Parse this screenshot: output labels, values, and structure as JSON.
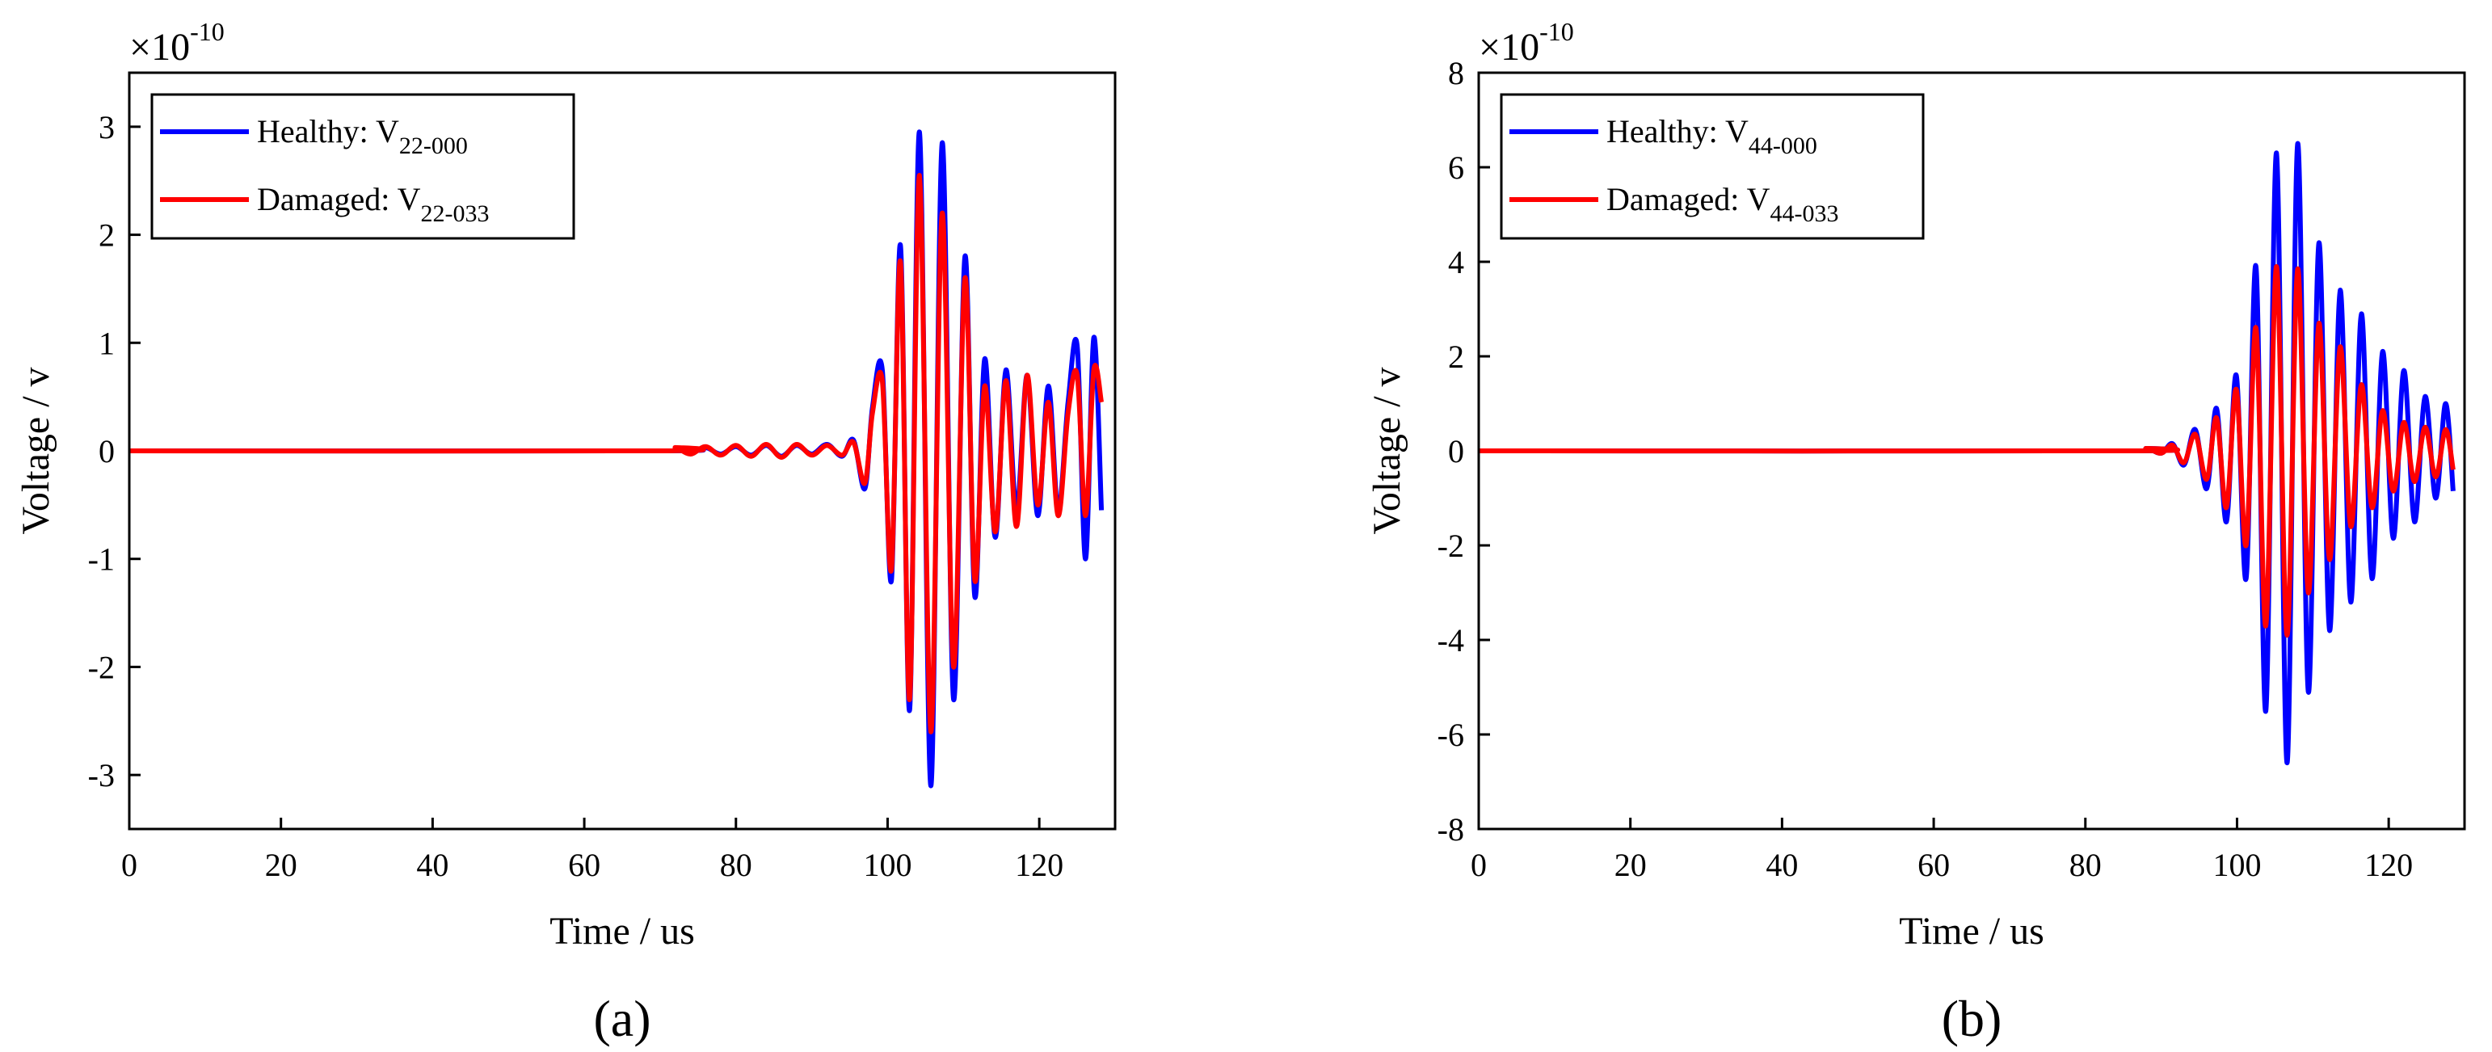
{
  "figure": {
    "panel_labels": [
      "(a)",
      "(b)"
    ],
    "colors": {
      "healthy": "#0000ff",
      "damaged": "#ff0000",
      "axis": "#000000"
    }
  },
  "chart_data": [
    {
      "type": "line",
      "panel_label": "a",
      "xlabel": "Time / us",
      "ylabel": "Voltage / v",
      "multiplier": "×10",
      "multiplier_exponent": "-10",
      "xlim": [
        0,
        130
      ],
      "ylim": [
        -3.5,
        3.5
      ],
      "xticks": [
        0,
        20,
        40,
        60,
        80,
        100,
        120
      ],
      "yticks": [
        -3,
        -2,
        -1,
        0,
        1,
        2,
        3
      ],
      "legend": [
        {
          "label": "Healthy: V",
          "subscript": "22-000"
        },
        {
          "label": "Damaged: V",
          "subscript": "22-033"
        }
      ],
      "legend_position": "top-left",
      "series": [
        {
          "name": "Healthy: V22-000",
          "color": "#0000ff",
          "x": [
            0,
            70,
            72,
            74,
            76,
            78,
            80,
            82,
            84,
            86,
            88,
            90,
            92,
            94,
            95.5,
            97,
            98,
            99.3,
            100.5,
            101.7,
            102.9,
            104.2,
            105.7,
            107.2,
            108.7,
            110.2,
            111.5,
            112.8,
            114.2,
            115.6,
            117,
            118.4,
            119.8,
            121.2,
            122.5,
            123.8,
            125,
            126.1,
            127.2,
            128.2
          ],
          "y": [
            0,
            0,
            0.02,
            -0.02,
            0.03,
            -0.03,
            0.04,
            -0.04,
            0.05,
            -0.05,
            0.05,
            -0.03,
            0.06,
            -0.05,
            0.1,
            -0.35,
            0.4,
            0.75,
            -1.2,
            1.9,
            -2.4,
            2.95,
            -3.1,
            2.85,
            -2.3,
            1.8,
            -1.35,
            0.85,
            -0.8,
            0.75,
            -0.55,
            0.7,
            -0.6,
            0.6,
            -0.55,
            0.45,
            0.97,
            -1.0,
            1.05,
            -0.55
          ]
        },
        {
          "name": "Damaged: V22-033",
          "color": "#ff0000",
          "x": [
            0,
            70,
            72,
            74,
            76,
            78,
            80,
            82,
            84,
            86,
            88,
            90,
            92,
            94,
            95.5,
            97,
            98,
            99.3,
            100.5,
            101.7,
            102.9,
            104.2,
            105.7,
            107.2,
            108.7,
            110.2,
            111.5,
            112.8,
            114.2,
            115.6,
            117,
            118.4,
            119.8,
            121.2,
            122.5,
            123.8,
            125,
            126.1,
            127.2,
            128.2
          ],
          "y": [
            0,
            0,
            0.03,
            -0.03,
            0.04,
            -0.04,
            0.05,
            -0.05,
            0.06,
            -0.06,
            0.06,
            -0.04,
            0.05,
            -0.04,
            0.08,
            -0.3,
            0.35,
            0.65,
            -1.1,
            1.75,
            -2.3,
            2.55,
            -2.6,
            2.2,
            -2.0,
            1.6,
            -1.2,
            0.6,
            -0.75,
            0.65,
            -0.7,
            0.7,
            -0.5,
            0.45,
            -0.6,
            0.35,
            0.7,
            -0.6,
            0.75,
            0.45
          ]
        }
      ]
    },
    {
      "type": "line",
      "panel_label": "b",
      "xlabel": "Time / us",
      "ylabel": "Voltage / v",
      "multiplier": "×10",
      "multiplier_exponent": "-10",
      "xlim": [
        0,
        130
      ],
      "ylim": [
        -8,
        8
      ],
      "xticks": [
        0,
        20,
        40,
        60,
        80,
        100,
        120
      ],
      "yticks": [
        -8,
        -6,
        -4,
        -2,
        0,
        2,
        4,
        6,
        8
      ],
      "legend": [
        {
          "label": "Healthy: V",
          "subscript": "44-000"
        },
        {
          "label": "Damaged: V",
          "subscript": "44-033"
        }
      ],
      "legend_position": "top-left",
      "series": [
        {
          "name": "Healthy: V44-000",
          "color": "#0000ff",
          "x": [
            0,
            85,
            88,
            90,
            91.5,
            93,
            94.5,
            96,
            97.3,
            98.6,
            99.9,
            101.2,
            102.5,
            103.8,
            105.2,
            106.6,
            108,
            109.4,
            110.8,
            112.2,
            113.6,
            115,
            116.4,
            117.8,
            119.2,
            120.6,
            122,
            123.4,
            124.8,
            126.2,
            127.5,
            128.5
          ],
          "y": [
            0,
            0,
            0.05,
            -0.05,
            0.15,
            -0.3,
            0.45,
            -0.8,
            0.9,
            -1.5,
            1.6,
            -2.7,
            3.9,
            -5.5,
            6.3,
            -6.6,
            6.5,
            -5.1,
            4.4,
            -3.8,
            3.4,
            -3.2,
            2.9,
            -2.7,
            2.1,
            -1.85,
            1.7,
            -1.5,
            1.15,
            -1.0,
            1.0,
            -0.85
          ]
        },
        {
          "name": "Damaged: V44-033",
          "color": "#ff0000",
          "x": [
            0,
            85,
            88,
            90,
            91.5,
            93,
            94.5,
            96,
            97.3,
            98.6,
            99.9,
            101.2,
            102.5,
            103.8,
            105.2,
            106.6,
            108,
            109.4,
            110.8,
            112.2,
            113.6,
            115,
            116.4,
            117.8,
            119.2,
            120.6,
            122,
            123.4,
            124.8,
            126.2,
            127.5,
            128.5
          ],
          "y": [
            0,
            0,
            0.05,
            -0.05,
            0.12,
            -0.25,
            0.35,
            -0.6,
            0.7,
            -1.2,
            1.3,
            -2.0,
            2.6,
            -3.7,
            3.9,
            -3.9,
            3.85,
            -3.0,
            2.7,
            -2.3,
            2.2,
            -1.6,
            1.4,
            -1.2,
            0.85,
            -0.85,
            0.6,
            -0.65,
            0.5,
            -0.55,
            0.45,
            -0.4
          ]
        }
      ]
    }
  ]
}
